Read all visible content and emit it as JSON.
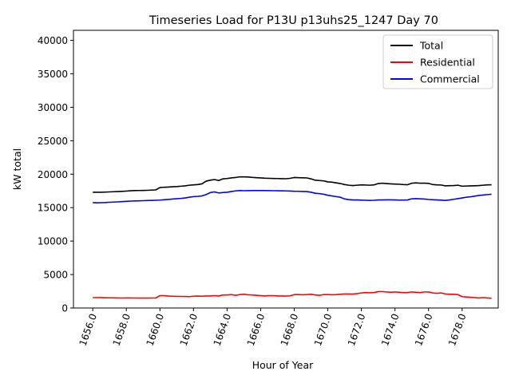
{
  "chart_data": {
    "type": "line",
    "title": "Timeseries Load for P13U p13uhs25_1247  Day 70",
    "xlabel": "Hour of Year",
    "ylabel": "kW total",
    "xlim": [
      1654.85,
      1680.15
    ],
    "ylim": [
      0,
      41500
    ],
    "xticks": [
      1656,
      1658,
      1660,
      1662,
      1664,
      1666,
      1668,
      1670,
      1672,
      1674,
      1676,
      1678
    ],
    "xtick_labels": [
      "1656.0",
      "1658.0",
      "1660.0",
      "1662.0",
      "1664.0",
      "1666.0",
      "1668.0",
      "1670.0",
      "1672.0",
      "1674.0",
      "1676.0",
      "1678.0"
    ],
    "yticks": [
      0,
      5000,
      10000,
      15000,
      20000,
      25000,
      30000,
      35000,
      40000
    ],
    "ytick_labels": [
      "0",
      "5000",
      "10000",
      "15000",
      "20000",
      "25000",
      "30000",
      "35000",
      "40000"
    ],
    "legend_position": "top-right",
    "x": [
      1656.0,
      1656.25,
      1656.5,
      1656.75,
      1657.0,
      1657.25,
      1657.5,
      1657.75,
      1658.0,
      1658.25,
      1658.5,
      1658.75,
      1659.0,
      1659.25,
      1659.5,
      1659.75,
      1660.0,
      1660.25,
      1660.5,
      1660.75,
      1661.0,
      1661.25,
      1661.5,
      1661.75,
      1662.0,
      1662.25,
      1662.5,
      1662.75,
      1663.0,
      1663.25,
      1663.5,
      1663.75,
      1664.0,
      1664.25,
      1664.5,
      1664.75,
      1665.0,
      1665.25,
      1665.5,
      1665.75,
      1666.0,
      1666.25,
      1666.5,
      1666.75,
      1667.0,
      1667.25,
      1667.5,
      1667.75,
      1668.0,
      1668.25,
      1668.5,
      1668.75,
      1669.0,
      1669.25,
      1669.5,
      1669.75,
      1670.0,
      1670.25,
      1670.5,
      1670.75,
      1671.0,
      1671.25,
      1671.5,
      1671.75,
      1672.0,
      1672.25,
      1672.5,
      1672.75,
      1673.0,
      1673.25,
      1673.5,
      1673.75,
      1674.0,
      1674.25,
      1674.5,
      1674.75,
      1675.0,
      1675.25,
      1675.5,
      1675.75,
      1676.0,
      1676.25,
      1676.5,
      1676.75,
      1677.0,
      1677.25,
      1677.5,
      1677.75,
      1678.0,
      1678.25,
      1678.5,
      1678.75,
      1679.0,
      1679.25,
      1679.5,
      1679.75
    ],
    "series": [
      {
        "name": "Total",
        "color": "#000000",
        "values": [
          17300,
          17300,
          17300,
          17320,
          17350,
          17380,
          17400,
          17430,
          17470,
          17520,
          17550,
          17560,
          17570,
          17590,
          17620,
          17650,
          18000,
          18050,
          18080,
          18120,
          18150,
          18200,
          18250,
          18350,
          18400,
          18450,
          18550,
          18950,
          19100,
          19200,
          19050,
          19300,
          19350,
          19450,
          19500,
          19600,
          19600,
          19580,
          19520,
          19480,
          19450,
          19400,
          19380,
          19360,
          19350,
          19330,
          19320,
          19380,
          19500,
          19480,
          19460,
          19440,
          19300,
          19100,
          19050,
          19000,
          18850,
          18800,
          18700,
          18600,
          18450,
          18350,
          18300,
          18350,
          18400,
          18380,
          18350,
          18400,
          18600,
          18650,
          18600,
          18550,
          18520,
          18500,
          18450,
          18420,
          18650,
          18700,
          18650,
          18650,
          18620,
          18450,
          18400,
          18380,
          18250,
          18280,
          18300,
          18350,
          18200,
          18230,
          18250,
          18270,
          18300,
          18350,
          18400,
          18420
        ]
      },
      {
        "name": "Residential",
        "color": "#ff0000",
        "values": [
          1550,
          1550,
          1540,
          1530,
          1520,
          1510,
          1500,
          1490,
          1500,
          1500,
          1490,
          1480,
          1480,
          1480,
          1490,
          1500,
          1850,
          1850,
          1780,
          1760,
          1740,
          1730,
          1720,
          1700,
          1750,
          1780,
          1760,
          1800,
          1800,
          1850,
          1800,
          1950,
          1950,
          2000,
          1900,
          2000,
          2050,
          1980,
          1950,
          1900,
          1850,
          1800,
          1850,
          1850,
          1800,
          1800,
          1780,
          1820,
          2000,
          2000,
          1980,
          2000,
          2050,
          1950,
          1900,
          2000,
          2000,
          1980,
          2000,
          2050,
          2100,
          2100,
          2080,
          2150,
          2250,
          2300,
          2280,
          2300,
          2450,
          2450,
          2400,
          2350,
          2400,
          2350,
          2300,
          2300,
          2400,
          2350,
          2300,
          2400,
          2400,
          2250,
          2200,
          2250,
          2100,
          2050,
          2050,
          2000,
          1700,
          1650,
          1600,
          1550,
          1500,
          1550,
          1500,
          1450
        ]
      },
      {
        "name": "Commercial",
        "color": "#0000ff",
        "values": [
          15750,
          15720,
          15740,
          15760,
          15800,
          15830,
          15860,
          15900,
          15940,
          15980,
          16000,
          16020,
          16040,
          16060,
          16080,
          16100,
          16130,
          16180,
          16230,
          16280,
          16330,
          16380,
          16450,
          16550,
          16650,
          16680,
          16750,
          16950,
          17250,
          17350,
          17200,
          17250,
          17300,
          17400,
          17500,
          17550,
          17530,
          17540,
          17550,
          17550,
          17550,
          17550,
          17540,
          17530,
          17520,
          17510,
          17500,
          17480,
          17450,
          17440,
          17420,
          17400,
          17300,
          17150,
          17100,
          17000,
          16850,
          16750,
          16650,
          16550,
          16300,
          16200,
          16150,
          16150,
          16120,
          16100,
          16080,
          16100,
          16150,
          16150,
          16170,
          16170,
          16150,
          16130,
          16130,
          16150,
          16320,
          16350,
          16320,
          16280,
          16220,
          16180,
          16150,
          16120,
          16080,
          16150,
          16250,
          16350,
          16450,
          16550,
          16620,
          16720,
          16820,
          16880,
          16950,
          17000
        ]
      }
    ]
  }
}
